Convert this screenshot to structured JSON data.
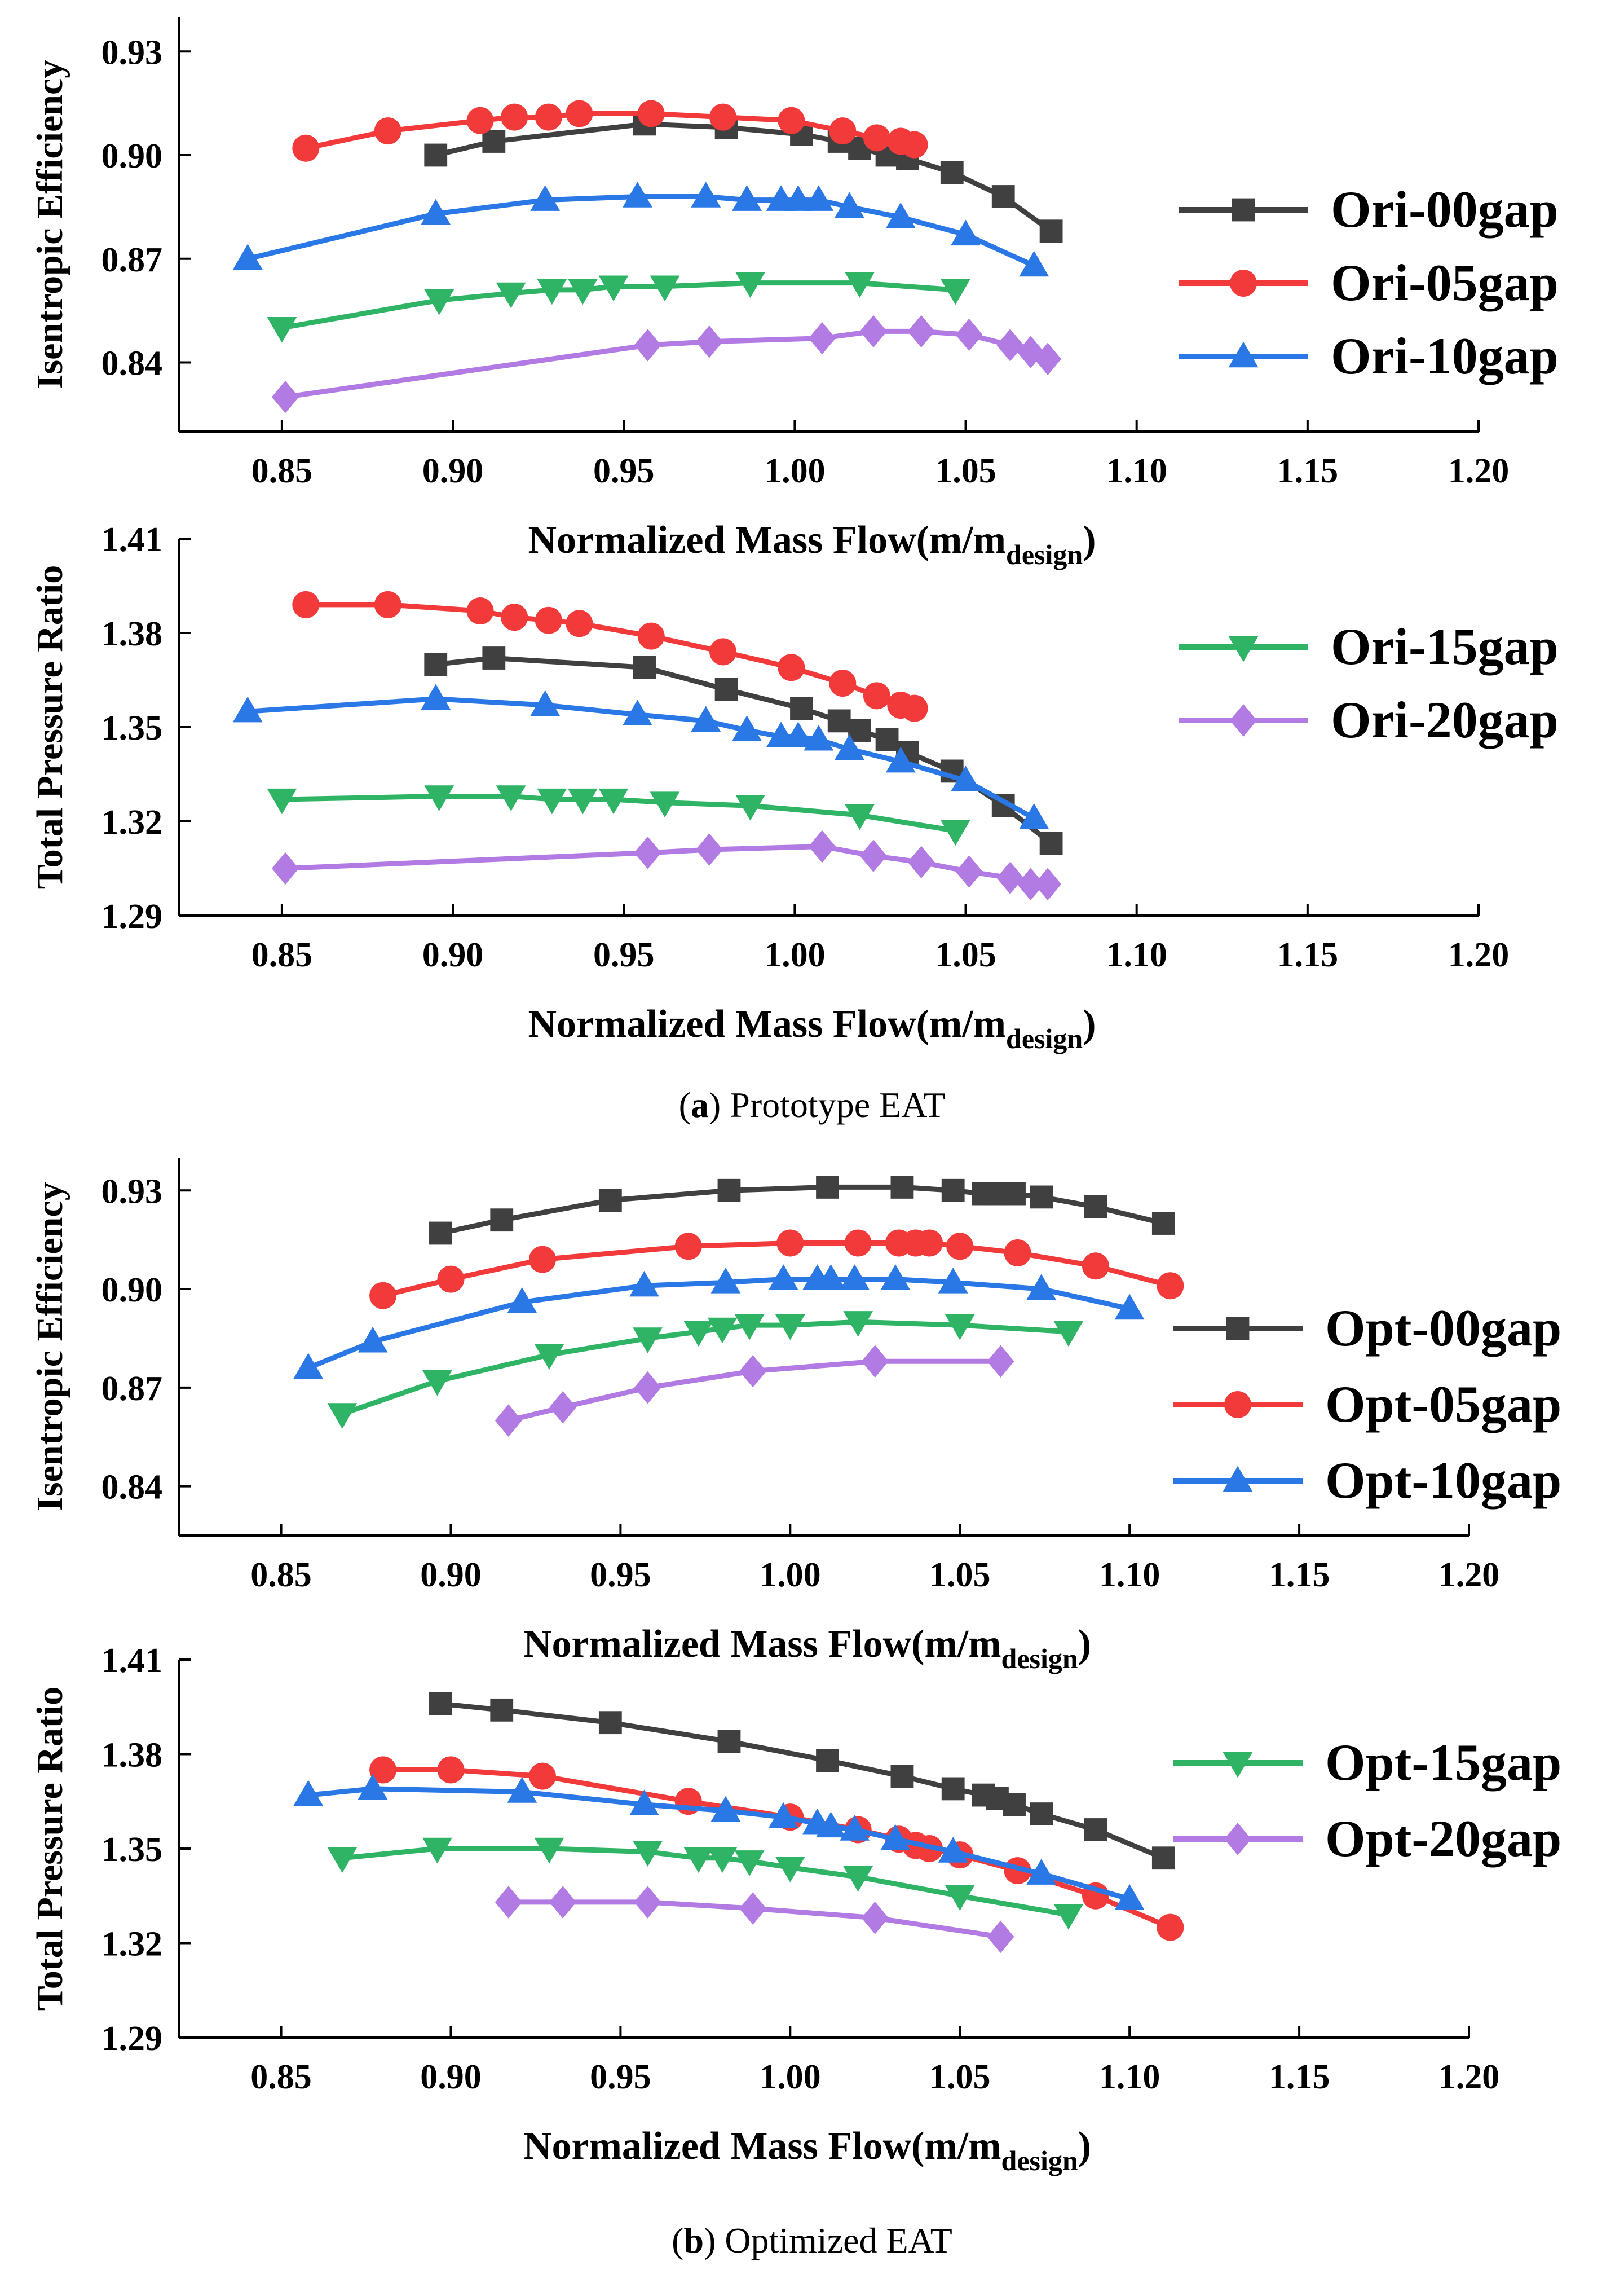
{
  "figure": {
    "caption_a_letter": "a",
    "caption_a_text": "Prototype EAT",
    "caption_b_letter": "b",
    "caption_b_text": "Optimized EAT"
  },
  "styles": {
    "00gap": {
      "color": "#404040",
      "marker": "square"
    },
    "05gap": {
      "color": "#f23a3a",
      "marker": "circle"
    },
    "10gap": {
      "color": "#2a78e6",
      "marker": "triangle-up"
    },
    "15gap": {
      "color": "#2fb466",
      "marker": "triangle-down"
    },
    "20gap": {
      "color": "#b27ae3",
      "marker": "diamond"
    }
  },
  "chart_data": [
    {
      "id": "ori-eff",
      "type": "line",
      "xlabel": "Normalized Mass Flow(m/m",
      "xlabel_sub": "design",
      "xlabel_close": ")",
      "ylabel": "Isentropic Efficiency",
      "xlim": [
        0.82,
        1.2
      ],
      "ylim": [
        0.82,
        0.94
      ],
      "xticks": [
        0.85,
        0.9,
        0.95,
        1.0,
        1.05,
        1.1,
        1.15,
        1.2
      ],
      "yticks": [
        0.84,
        0.87,
        0.9,
        0.93
      ],
      "legend": [
        "Ori-00gap",
        "Ori-05gap",
        "Ori-10gap"
      ],
      "series": [
        {
          "name": "Ori-00gap",
          "style": "00gap",
          "x": [
            0.895,
            0.912,
            0.956,
            0.98,
            1.002,
            1.013,
            1.019,
            1.027,
            1.033,
            1.046,
            1.061,
            1.075
          ],
          "y": [
            0.9,
            0.904,
            0.909,
            0.908,
            0.906,
            0.904,
            0.902,
            0.9,
            0.899,
            0.895,
            0.888,
            0.878
          ]
        },
        {
          "name": "Ori-05gap",
          "style": "05gap",
          "x": [
            0.857,
            0.881,
            0.908,
            0.918,
            0.928,
            0.937,
            0.958,
            0.979,
            0.999,
            1.014,
            1.024,
            1.031,
            1.035
          ],
          "y": [
            0.902,
            0.907,
            0.91,
            0.911,
            0.911,
            0.912,
            0.912,
            0.911,
            0.91,
            0.907,
            0.905,
            0.904,
            0.903
          ]
        },
        {
          "name": "Ori-10gap",
          "style": "10gap",
          "x": [
            0.84,
            0.895,
            0.927,
            0.954,
            0.974,
            0.986,
            0.996,
            1.001,
            1.007,
            1.016,
            1.031,
            1.05,
            1.07
          ],
          "y": [
            0.87,
            0.883,
            0.887,
            0.888,
            0.888,
            0.887,
            0.887,
            0.887,
            0.887,
            0.885,
            0.882,
            0.877,
            0.868
          ]
        },
        {
          "name": "Ori-15gap",
          "style": "15gap",
          "x": [
            0.85,
            0.896,
            0.917,
            0.929,
            0.938,
            0.947,
            0.962,
            0.987,
            1.019,
            1.047
          ],
          "y": [
            0.85,
            0.858,
            0.86,
            0.861,
            0.861,
            0.862,
            0.862,
            0.863,
            0.863,
            0.861
          ]
        },
        {
          "name": "Ori-20gap",
          "style": "20gap",
          "x": [
            0.851,
            0.957,
            0.975,
            1.008,
            1.023,
            1.037,
            1.051,
            1.063,
            1.069,
            1.074
          ],
          "y": [
            0.83,
            0.845,
            0.846,
            0.847,
            0.849,
            0.849,
            0.848,
            0.845,
            0.843,
            0.841
          ]
        }
      ]
    },
    {
      "id": "ori-pr",
      "type": "line",
      "xlabel": "Normalized Mass Flow(m/m",
      "xlabel_sub": "design",
      "xlabel_close": ")",
      "ylabel": "Total Pressure Ratio",
      "xlim": [
        0.82,
        1.2
      ],
      "ylim": [
        1.29,
        1.41
      ],
      "xticks": [
        0.85,
        0.9,
        0.95,
        1.0,
        1.05,
        1.1,
        1.15,
        1.2
      ],
      "yticks": [
        1.29,
        1.32,
        1.35,
        1.38,
        1.41
      ],
      "legend": [
        "Ori-15gap",
        "Ori-20gap"
      ],
      "series": [
        {
          "name": "Ori-00gap",
          "style": "00gap",
          "x": [
            0.895,
            0.912,
            0.956,
            0.98,
            1.002,
            1.013,
            1.019,
            1.027,
            1.033,
            1.046,
            1.061,
            1.075
          ],
          "y": [
            1.37,
            1.372,
            1.369,
            1.362,
            1.356,
            1.352,
            1.349,
            1.346,
            1.342,
            1.336,
            1.325,
            1.313
          ]
        },
        {
          "name": "Ori-05gap",
          "style": "05gap",
          "x": [
            0.857,
            0.881,
            0.908,
            0.918,
            0.928,
            0.937,
            0.958,
            0.979,
            0.999,
            1.014,
            1.024,
            1.031,
            1.035
          ],
          "y": [
            1.389,
            1.389,
            1.387,
            1.385,
            1.384,
            1.383,
            1.379,
            1.374,
            1.369,
            1.364,
            1.36,
            1.357,
            1.356
          ]
        },
        {
          "name": "Ori-10gap",
          "style": "10gap",
          "x": [
            0.84,
            0.895,
            0.927,
            0.954,
            0.974,
            0.986,
            0.996,
            1.001,
            1.007,
            1.016,
            1.031,
            1.05,
            1.07
          ],
          "y": [
            1.355,
            1.359,
            1.357,
            1.354,
            1.352,
            1.349,
            1.347,
            1.347,
            1.346,
            1.343,
            1.339,
            1.333,
            1.321
          ]
        },
        {
          "name": "Ori-15gap",
          "style": "15gap",
          "x": [
            0.85,
            0.896,
            0.917,
            0.929,
            0.938,
            0.947,
            0.962,
            0.987,
            1.019,
            1.047
          ],
          "y": [
            1.327,
            1.328,
            1.328,
            1.327,
            1.327,
            1.327,
            1.326,
            1.325,
            1.322,
            1.317
          ]
        },
        {
          "name": "Ori-20gap",
          "style": "20gap",
          "x": [
            0.851,
            0.957,
            0.975,
            1.008,
            1.023,
            1.037,
            1.051,
            1.063,
            1.069,
            1.074
          ],
          "y": [
            1.305,
            1.31,
            1.311,
            1.312,
            1.309,
            1.307,
            1.304,
            1.302,
            1.3,
            1.3
          ]
        }
      ]
    },
    {
      "id": "opt-eff",
      "type": "line",
      "xlabel": "Normalized Mass Flow(m/m",
      "xlabel_sub": "design",
      "xlabel_close": ")",
      "ylabel": "Isentropic Efficiency",
      "xlim": [
        0.82,
        1.2
      ],
      "ylim": [
        0.825,
        0.94
      ],
      "xticks": [
        0.85,
        0.9,
        0.95,
        1.0,
        1.05,
        1.1,
        1.15,
        1.2
      ],
      "yticks": [
        0.84,
        0.87,
        0.9,
        0.93
      ],
      "legend": [
        "Opt-00gap",
        "Opt-05gap",
        "Opt-10gap"
      ],
      "series": [
        {
          "name": "Opt-00gap",
          "style": "00gap",
          "x": [
            0.897,
            0.915,
            0.947,
            0.982,
            1.011,
            1.033,
            1.048,
            1.057,
            1.061,
            1.066,
            1.074,
            1.09,
            1.11
          ],
          "y": [
            0.917,
            0.921,
            0.927,
            0.93,
            0.931,
            0.931,
            0.93,
            0.929,
            0.929,
            0.929,
            0.928,
            0.925,
            0.92
          ]
        },
        {
          "name": "Opt-05gap",
          "style": "05gap",
          "x": [
            0.88,
            0.9,
            0.927,
            0.97,
            1.0,
            1.02,
            1.032,
            1.037,
            1.041,
            1.05,
            1.067,
            1.09,
            1.112
          ],
          "y": [
            0.898,
            0.903,
            0.909,
            0.913,
            0.914,
            0.914,
            0.914,
            0.914,
            0.914,
            0.913,
            0.911,
            0.907,
            0.901
          ]
        },
        {
          "name": "Opt-10gap",
          "style": "10gap",
          "x": [
            0.858,
            0.877,
            0.921,
            0.957,
            0.981,
            0.998,
            1.008,
            1.012,
            1.019,
            1.031,
            1.048,
            1.074,
            1.1
          ],
          "y": [
            0.876,
            0.884,
            0.896,
            0.901,
            0.902,
            0.903,
            0.903,
            0.903,
            0.903,
            0.903,
            0.902,
            0.9,
            0.894
          ]
        },
        {
          "name": "Opt-15gap",
          "style": "15gap",
          "x": [
            0.868,
            0.896,
            0.929,
            0.958,
            0.973,
            0.98,
            0.988,
            1.0,
            1.02,
            1.05,
            1.082
          ],
          "y": [
            0.862,
            0.872,
            0.88,
            0.885,
            0.887,
            0.888,
            0.889,
            0.889,
            0.89,
            0.889,
            0.887
          ]
        },
        {
          "name": "Opt-20gap",
          "style": "20gap",
          "x": [
            0.917,
            0.933,
            0.958,
            0.989,
            1.025,
            1.062
          ],
          "y": [
            0.86,
            0.864,
            0.87,
            0.875,
            0.878,
            0.878
          ]
        }
      ]
    },
    {
      "id": "opt-pr",
      "type": "line",
      "xlabel": "Normalized Mass Flow(m/m",
      "xlabel_sub": "design",
      "xlabel_close": ")",
      "ylabel": "Total Pressure Ratio",
      "xlim": [
        0.82,
        1.2
      ],
      "ylim": [
        1.29,
        1.41
      ],
      "xticks": [
        0.85,
        0.9,
        0.95,
        1.0,
        1.05,
        1.1,
        1.15,
        1.2
      ],
      "yticks": [
        1.29,
        1.32,
        1.35,
        1.38,
        1.41
      ],
      "legend": [
        "Opt-15gap",
        "Opt-20gap"
      ],
      "series": [
        {
          "name": "Opt-00gap",
          "style": "00gap",
          "x": [
            0.897,
            0.915,
            0.947,
            0.982,
            1.011,
            1.033,
            1.048,
            1.057,
            1.061,
            1.066,
            1.074,
            1.09,
            1.11
          ],
          "y": [
            1.396,
            1.394,
            1.39,
            1.384,
            1.378,
            1.373,
            1.369,
            1.367,
            1.366,
            1.364,
            1.361,
            1.356,
            1.347
          ]
        },
        {
          "name": "Opt-05gap",
          "style": "05gap",
          "x": [
            0.88,
            0.9,
            0.927,
            0.97,
            1.0,
            1.02,
            1.032,
            1.037,
            1.041,
            1.05,
            1.067,
            1.09,
            1.112
          ],
          "y": [
            1.375,
            1.375,
            1.373,
            1.365,
            1.36,
            1.356,
            1.353,
            1.351,
            1.35,
            1.348,
            1.343,
            1.335,
            1.325
          ]
        },
        {
          "name": "Opt-10gap",
          "style": "10gap",
          "x": [
            0.858,
            0.877,
            0.921,
            0.957,
            0.981,
            0.998,
            1.008,
            1.012,
            1.019,
            1.031,
            1.048,
            1.074,
            1.1
          ],
          "y": [
            1.367,
            1.369,
            1.368,
            1.364,
            1.362,
            1.36,
            1.358,
            1.357,
            1.356,
            1.353,
            1.349,
            1.342,
            1.334
          ]
        },
        {
          "name": "Opt-15gap",
          "style": "15gap",
          "x": [
            0.868,
            0.896,
            0.929,
            0.958,
            0.973,
            0.98,
            0.988,
            1.0,
            1.02,
            1.05,
            1.082
          ],
          "y": [
            1.347,
            1.35,
            1.35,
            1.349,
            1.347,
            1.347,
            1.346,
            1.344,
            1.341,
            1.335,
            1.329
          ]
        },
        {
          "name": "Opt-20gap",
          "style": "20gap",
          "x": [
            0.917,
            0.933,
            0.958,
            0.989,
            1.025,
            1.062
          ],
          "y": [
            1.333,
            1.333,
            1.333,
            1.331,
            1.328,
            1.322
          ]
        }
      ]
    }
  ]
}
